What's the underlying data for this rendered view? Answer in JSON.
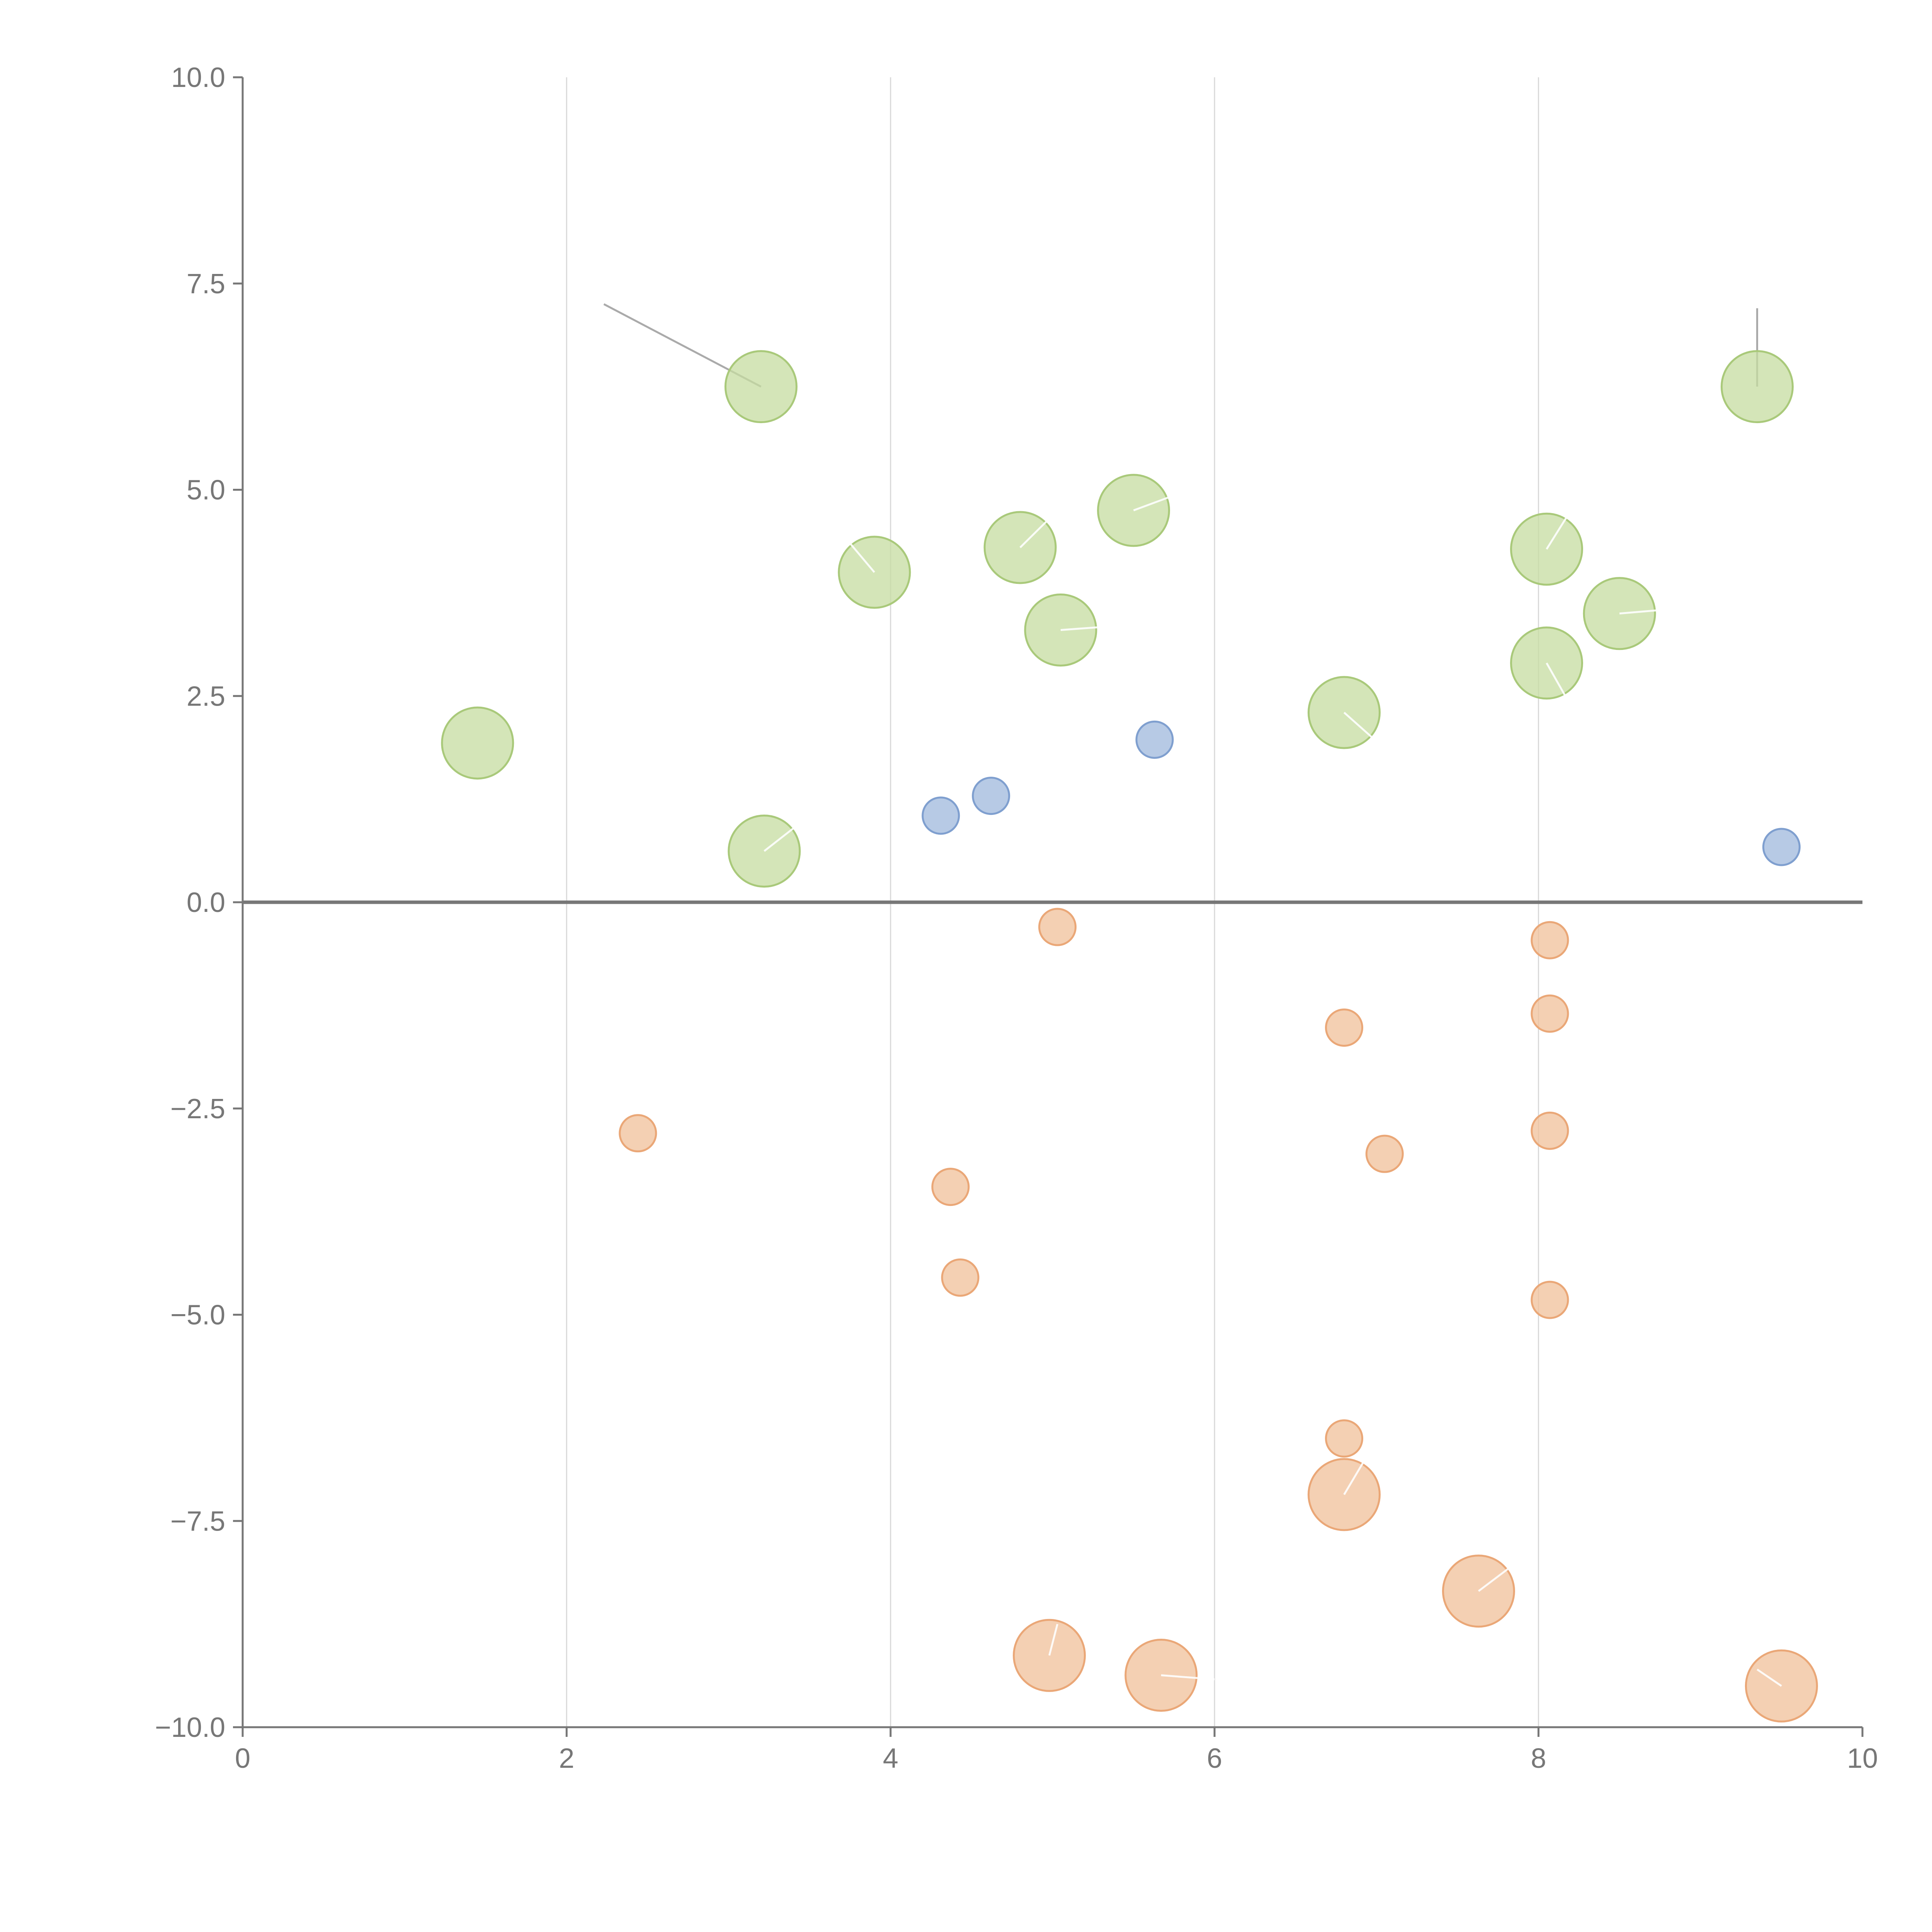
{
  "chart_data": {
    "type": "scatter",
    "title": "",
    "xlabel": "",
    "ylabel": "",
    "xlim": [
      0,
      10
    ],
    "ylim": [
      -10,
      10
    ],
    "x_ticks": [
      "0",
      "2",
      "4",
      "6",
      "8",
      "10"
    ],
    "x_tick_values": [
      0,
      2,
      4,
      6,
      8,
      10
    ],
    "y_ticks": [
      "10.0",
      "7.5",
      "5.0",
      "2.5",
      "0.0",
      "−2.5",
      "−5.0",
      "−7.5",
      "−10.0"
    ],
    "y_tick_values": [
      10,
      7.5,
      5,
      2.5,
      0,
      -2.5,
      -5,
      -7.5,
      -10
    ],
    "grid": "vertical",
    "zero_line": true,
    "series": [
      {
        "name": "green",
        "color": "#c5dca0",
        "stroke": "#a9c97a",
        "size": "large",
        "points": [
          {
            "x": 3.2,
            "y": 6.25
          },
          {
            "x": 9.35,
            "y": 6.25
          },
          {
            "x": 5.5,
            "y": 4.75
          },
          {
            "x": 4.8,
            "y": 4.3
          },
          {
            "x": 8.05,
            "y": 4.28
          },
          {
            "x": 3.9,
            "y": 4.0
          },
          {
            "x": 8.5,
            "y": 3.5
          },
          {
            "x": 5.05,
            "y": 3.3
          },
          {
            "x": 8.05,
            "y": 2.9
          },
          {
            "x": 6.8,
            "y": 2.3
          },
          {
            "x": 1.45,
            "y": 1.93
          },
          {
            "x": 3.22,
            "y": 0.62
          }
        ]
      },
      {
        "name": "blue",
        "color": "#9fb8dc",
        "stroke": "#7f9fcf",
        "size": "small",
        "points": [
          {
            "x": 5.63,
            "y": 1.97
          },
          {
            "x": 4.62,
            "y": 1.29
          },
          {
            "x": 4.31,
            "y": 1.05
          },
          {
            "x": 9.5,
            "y": 0.67
          }
        ]
      },
      {
        "name": "orange-small",
        "color": "#f0c09a",
        "stroke": "#eaa777",
        "size": "small",
        "points": [
          {
            "x": 5.03,
            "y": -0.3
          },
          {
            "x": 8.07,
            "y": -0.46
          },
          {
            "x": 8.07,
            "y": -1.35
          },
          {
            "x": 6.8,
            "y": -1.52
          },
          {
            "x": 2.44,
            "y": -2.8
          },
          {
            "x": 8.07,
            "y": -2.77
          },
          {
            "x": 7.05,
            "y": -3.05
          },
          {
            "x": 4.37,
            "y": -3.45
          },
          {
            "x": 4.43,
            "y": -4.55
          },
          {
            "x": 8.07,
            "y": -4.82
          },
          {
            "x": 6.8,
            "y": -6.5
          }
        ]
      },
      {
        "name": "orange-large",
        "color": "#f0c09a",
        "stroke": "#eaa777",
        "size": "large",
        "points": [
          {
            "x": 6.8,
            "y": -7.18
          },
          {
            "x": 7.63,
            "y": -8.35
          },
          {
            "x": 4.98,
            "y": -9.13
          },
          {
            "x": 5.67,
            "y": -9.37
          },
          {
            "x": 9.5,
            "y": -9.5
          }
        ]
      }
    ],
    "leader_lines": [
      {
        "from": [
          3.2,
          6.25
        ],
        "to": [
          2.23,
          7.25
        ],
        "visible": true
      },
      {
        "from": [
          9.35,
          6.25
        ],
        "to": [
          9.35,
          7.2
        ],
        "visible": true
      },
      {
        "from": [
          5.5,
          4.75
        ],
        "to": [
          5.98,
          5.1
        ],
        "visible": false
      },
      {
        "from": [
          4.8,
          4.3
        ],
        "to": [
          4.98,
          4.65
        ],
        "visible": false
      },
      {
        "from": [
          8.05,
          4.28
        ],
        "to": [
          8.2,
          4.75
        ],
        "visible": false
      },
      {
        "from": [
          3.9,
          4.0
        ],
        "to": [
          3.75,
          4.35
        ],
        "visible": false
      },
      {
        "from": [
          8.5,
          3.5
        ],
        "to": [
          8.8,
          3.55
        ],
        "visible": false
      },
      {
        "from": [
          5.05,
          3.3
        ],
        "to": [
          5.4,
          3.35
        ],
        "visible": false
      },
      {
        "from": [
          8.05,
          2.9
        ],
        "to": [
          8.18,
          2.45
        ],
        "visible": false
      },
      {
        "from": [
          6.8,
          2.3
        ],
        "to": [
          7.0,
          1.95
        ],
        "visible": false
      },
      {
        "from": [
          3.22,
          0.62
        ],
        "to": [
          3.5,
          1.05
        ],
        "visible": false
      },
      {
        "from": [
          6.8,
          -7.18
        ],
        "to": [
          6.93,
          -6.75
        ],
        "visible": false
      },
      {
        "from": [
          7.63,
          -8.35
        ],
        "to": [
          7.9,
          -7.95
        ],
        "visible": false
      },
      {
        "from": [
          4.98,
          -9.13
        ],
        "to": [
          5.03,
          -8.75
        ],
        "visible": false
      },
      {
        "from": [
          5.67,
          -9.37
        ],
        "to": [
          6.0,
          -9.42
        ],
        "visible": false
      },
      {
        "from": [
          9.5,
          -9.5
        ],
        "to": [
          9.35,
          -9.3
        ],
        "visible": false
      }
    ]
  }
}
